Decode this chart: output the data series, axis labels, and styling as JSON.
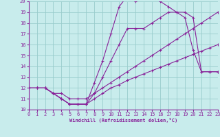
{
  "xlabel": "Windchill (Refroidissement éolien,°C)",
  "xlim": [
    0,
    23
  ],
  "ylim": [
    10,
    20
  ],
  "xticks": [
    0,
    1,
    2,
    3,
    4,
    5,
    6,
    7,
    8,
    9,
    10,
    11,
    12,
    13,
    14,
    15,
    16,
    17,
    18,
    19,
    20,
    21,
    22,
    23
  ],
  "yticks": [
    10,
    11,
    12,
    13,
    14,
    15,
    16,
    17,
    18,
    19,
    20
  ],
  "bg_color": "#c8ecec",
  "line_color": "#882299",
  "grid_color": "#99cccc",
  "lines": [
    {
      "x": [
        0,
        1,
        2,
        3,
        4,
        5,
        6,
        7,
        8,
        9,
        10,
        11,
        12,
        13,
        14,
        15,
        16,
        17,
        18,
        19,
        20,
        21,
        22,
        23
      ],
      "y": [
        12,
        12,
        12,
        11.5,
        11,
        10.5,
        10.5,
        10.5,
        11,
        11.5,
        12,
        12.3,
        12.7,
        13.0,
        13.3,
        13.6,
        13.9,
        14.2,
        14.5,
        14.8,
        15.1,
        15.4,
        15.7,
        16.0
      ]
    },
    {
      "x": [
        0,
        1,
        2,
        3,
        4,
        5,
        6,
        7,
        8,
        9,
        10,
        11,
        12,
        13,
        14,
        15,
        16,
        17,
        18,
        19,
        20,
        21,
        22,
        23
      ],
      "y": [
        12,
        12,
        12,
        11.5,
        11.5,
        11,
        11,
        11,
        11.5,
        12,
        12.5,
        13,
        13.5,
        14,
        14.5,
        15,
        15.5,
        16,
        16.5,
        17,
        17.5,
        18,
        18.5,
        19
      ]
    },
    {
      "x": [
        0,
        1,
        2,
        3,
        4,
        5,
        6,
        7,
        8,
        9,
        10,
        11,
        12,
        13,
        14,
        15,
        16,
        17,
        18,
        19,
        20,
        21,
        22,
        23
      ],
      "y": [
        12,
        12,
        12,
        11.5,
        11,
        10.5,
        10.5,
        10.5,
        11.5,
        13,
        14.5,
        16,
        17.5,
        17.5,
        17.5,
        18,
        18.5,
        19,
        19,
        18.5,
        15.5,
        13.5,
        13.5,
        13.5
      ]
    },
    {
      "x": [
        0,
        1,
        2,
        3,
        4,
        5,
        6,
        7,
        8,
        9,
        10,
        11,
        12,
        13,
        14,
        15,
        16,
        17,
        18,
        19,
        20,
        21,
        22,
        23
      ],
      "y": [
        12,
        12,
        12,
        11.5,
        11,
        10.5,
        10.5,
        10.5,
        12.5,
        14.5,
        17,
        19.5,
        20.5,
        20,
        20.5,
        20.5,
        20,
        19.5,
        19,
        19,
        18.5,
        13.5,
        13.5,
        13.5
      ]
    }
  ]
}
